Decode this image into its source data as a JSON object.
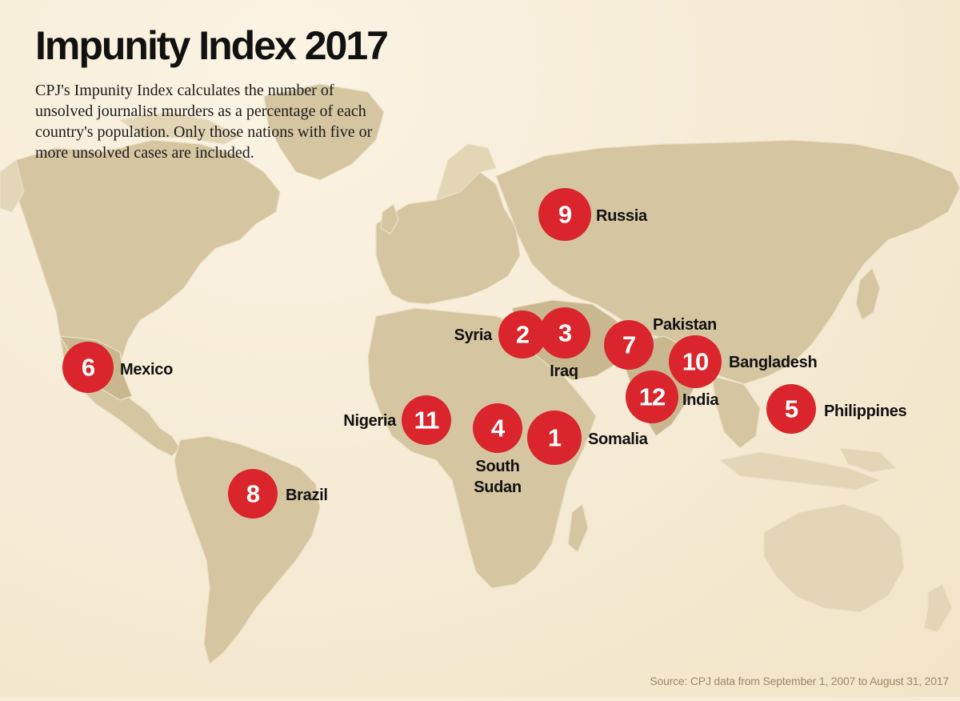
{
  "title": "Impunity Index 2017",
  "description": "CPJ's Impunity Index calculates the number of unsolved journalist murders as a percentage of each country's population. Only those nations with five or more unsolved cases are included.",
  "source": "Source: CPJ data from September 1, 2007 to August 31, 2017",
  "colors": {
    "marker": "#d9252b",
    "land": "#d5c6a1",
    "background": "#f6ecd6",
    "label": "#111111",
    "source_text": "#9b8a68"
  },
  "markers": [
    {
      "rank": "1",
      "country": "Somalia"
    },
    {
      "rank": "2",
      "country": "Syria"
    },
    {
      "rank": "3",
      "country": "Iraq"
    },
    {
      "rank": "4",
      "country": "South Sudan"
    },
    {
      "rank": "5",
      "country": "Philippines"
    },
    {
      "rank": "6",
      "country": "Mexico"
    },
    {
      "rank": "7",
      "country": "Pakistan"
    },
    {
      "rank": "8",
      "country": "Brazil"
    },
    {
      "rank": "9",
      "country": "Russia"
    },
    {
      "rank": "10",
      "country": "Bangladesh"
    },
    {
      "rank": "11",
      "country": "Nigeria"
    },
    {
      "rank": "12",
      "country": "India"
    }
  ]
}
